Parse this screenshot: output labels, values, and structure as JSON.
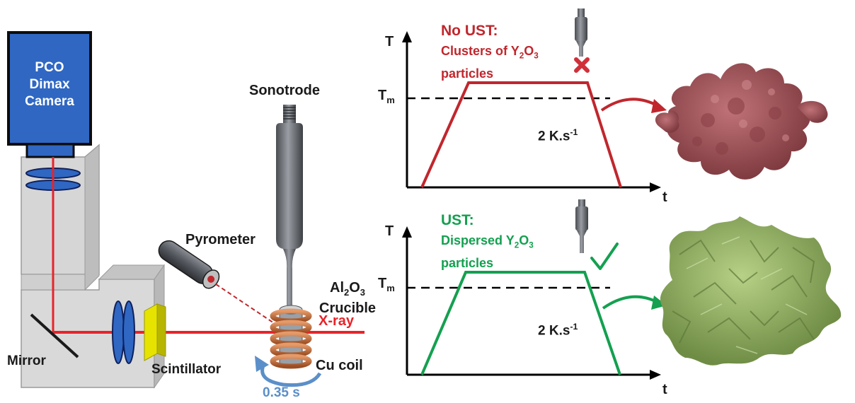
{
  "camera": {
    "line1": "PCO",
    "line2": "Dimax",
    "line3": "Camera"
  },
  "labels": {
    "sonotrode": "Sonotrode",
    "pyrometer": "Pyrometer",
    "crucible_prefix": "Al",
    "crucible_sub1": "2",
    "crucible_mid": "O",
    "crucible_sub2": "3",
    "crucible_word": "Crucible",
    "xray": "X-ray",
    "mirror": "Mirror",
    "scintillator": "Scintillator",
    "cu_coil": "Cu coil",
    "rotation": "0.35 s"
  },
  "plot_top": {
    "t_axis": "T",
    "time_axis": "t",
    "tm_main": "T",
    "tm_sub": "m",
    "rate_main": "2 K.s",
    "rate_sup": "-1",
    "title": "No UST:",
    "desc_l1_a": "Clusters of Y",
    "desc_l1_b": "2",
    "desc_l1_c": "O",
    "desc_l1_d": "3",
    "desc_l2": "particles"
  },
  "plot_bottom": {
    "t_axis": "T",
    "time_axis": "t",
    "tm_main": "T",
    "tm_sub": "m",
    "rate_main": "2 K.s",
    "rate_sup": "-1",
    "title": "UST:",
    "desc_l1_a": "Dispersed Y",
    "desc_l1_b": "2",
    "desc_l1_c": "O",
    "desc_l1_d": "3",
    "desc_l2": "particles"
  },
  "colors": {
    "red": "#c0272d",
    "green": "#14a050",
    "blue_label": "#5b8fc9",
    "camera": "#2f67c3",
    "beam": "#e8232a",
    "cluster": "#a45559",
    "dispersed": "#9dba6a"
  }
}
